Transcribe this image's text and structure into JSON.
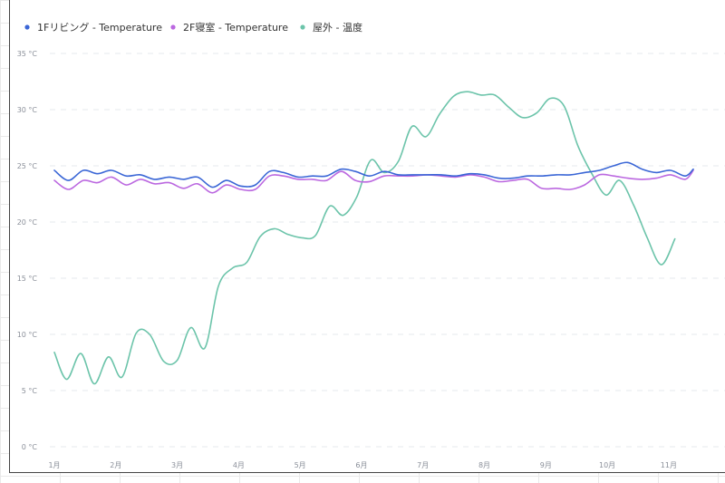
{
  "chart_data": {
    "type": "line",
    "title": "",
    "xlabel": "",
    "ylabel": "",
    "ylim": [
      0,
      35
    ],
    "yticks": [
      {
        "value": 0,
        "label": "0 °C"
      },
      {
        "value": 5,
        "label": "5 °C"
      },
      {
        "value": 10,
        "label": "10 °C"
      },
      {
        "value": 15,
        "label": "15 °C"
      },
      {
        "value": 20,
        "label": "20 °C"
      },
      {
        "value": 25,
        "label": "25 °C"
      },
      {
        "value": 30,
        "label": "30 °C"
      },
      {
        "value": 35,
        "label": "35 °C"
      }
    ],
    "xlim": [
      1,
      11.4
    ],
    "xticks": [
      {
        "value": 1,
        "label": "1月"
      },
      {
        "value": 2,
        "label": "2月"
      },
      {
        "value": 3,
        "label": "3月"
      },
      {
        "value": 4,
        "label": "4月"
      },
      {
        "value": 5,
        "label": "5月"
      },
      {
        "value": 6,
        "label": "6月"
      },
      {
        "value": 7,
        "label": "7月"
      },
      {
        "value": 8,
        "label": "8月"
      },
      {
        "value": 9,
        "label": "9月"
      },
      {
        "value": 10,
        "label": "10月"
      },
      {
        "value": 11,
        "label": "11月"
      }
    ],
    "grid": "horizontal-dashed",
    "legend_position": "top-left",
    "series": [
      {
        "name": "1Fリビング - Temperature",
        "color": "#3a66d6",
        "points": [
          [
            1.0,
            24.6
          ],
          [
            1.23,
            23.7
          ],
          [
            1.47,
            24.6
          ],
          [
            1.7,
            24.3
          ],
          [
            1.93,
            24.6
          ],
          [
            2.17,
            24.1
          ],
          [
            2.4,
            24.2
          ],
          [
            2.63,
            23.8
          ],
          [
            2.87,
            24.0
          ],
          [
            3.1,
            23.8
          ],
          [
            3.33,
            24.0
          ],
          [
            3.57,
            23.1
          ],
          [
            3.8,
            23.7
          ],
          [
            4.03,
            23.2
          ],
          [
            4.27,
            23.3
          ],
          [
            4.5,
            24.5
          ],
          [
            4.73,
            24.4
          ],
          [
            4.97,
            24.0
          ],
          [
            5.2,
            24.1
          ],
          [
            5.43,
            24.1
          ],
          [
            5.67,
            24.7
          ],
          [
            5.9,
            24.5
          ],
          [
            6.13,
            24.1
          ],
          [
            6.37,
            24.5
          ],
          [
            6.6,
            24.2
          ],
          [
            6.83,
            24.2
          ],
          [
            7.07,
            24.2
          ],
          [
            7.3,
            24.2
          ],
          [
            7.53,
            24.1
          ],
          [
            7.77,
            24.3
          ],
          [
            8.0,
            24.2
          ],
          [
            8.23,
            23.9
          ],
          [
            8.47,
            23.9
          ],
          [
            8.7,
            24.1
          ],
          [
            8.93,
            24.1
          ],
          [
            9.17,
            24.2
          ],
          [
            9.4,
            24.2
          ],
          [
            9.63,
            24.4
          ],
          [
            9.87,
            24.6
          ],
          [
            10.1,
            25.0
          ],
          [
            10.33,
            25.3
          ],
          [
            10.57,
            24.7
          ],
          [
            10.8,
            24.4
          ],
          [
            11.03,
            24.6
          ],
          [
            11.27,
            24.1
          ],
          [
            11.4,
            24.7
          ]
        ]
      },
      {
        "name": "2F寝室 - Temperature",
        "color": "#bb68e0",
        "points": [
          [
            1.0,
            23.7
          ],
          [
            1.23,
            22.9
          ],
          [
            1.47,
            23.7
          ],
          [
            1.7,
            23.5
          ],
          [
            1.93,
            24.0
          ],
          [
            2.17,
            23.3
          ],
          [
            2.4,
            23.8
          ],
          [
            2.63,
            23.4
          ],
          [
            2.87,
            23.5
          ],
          [
            3.1,
            23.0
          ],
          [
            3.33,
            23.4
          ],
          [
            3.57,
            22.6
          ],
          [
            3.8,
            23.3
          ],
          [
            4.03,
            22.9
          ],
          [
            4.27,
            22.9
          ],
          [
            4.5,
            24.1
          ],
          [
            4.73,
            24.1
          ],
          [
            4.97,
            23.8
          ],
          [
            5.2,
            23.8
          ],
          [
            5.43,
            23.7
          ],
          [
            5.67,
            24.5
          ],
          [
            5.9,
            23.7
          ],
          [
            6.13,
            23.6
          ],
          [
            6.37,
            24.1
          ],
          [
            6.6,
            24.1
          ],
          [
            6.83,
            24.1
          ],
          [
            7.07,
            24.2
          ],
          [
            7.3,
            24.1
          ],
          [
            7.53,
            24.0
          ],
          [
            7.77,
            24.2
          ],
          [
            8.0,
            24.0
          ],
          [
            8.23,
            23.6
          ],
          [
            8.47,
            23.7
          ],
          [
            8.7,
            23.8
          ],
          [
            8.93,
            23.0
          ],
          [
            9.17,
            23.0
          ],
          [
            9.4,
            22.9
          ],
          [
            9.63,
            23.3
          ],
          [
            9.87,
            24.2
          ],
          [
            10.1,
            24.1
          ],
          [
            10.33,
            23.9
          ],
          [
            10.57,
            23.8
          ],
          [
            10.8,
            23.9
          ],
          [
            11.03,
            24.2
          ],
          [
            11.27,
            23.8
          ],
          [
            11.4,
            24.6
          ]
        ]
      },
      {
        "name": "屋外 - 温度",
        "color": "#6cc4aa",
        "points": [
          [
            1.0,
            8.4
          ],
          [
            1.2,
            6.0
          ],
          [
            1.43,
            8.3
          ],
          [
            1.65,
            5.6
          ],
          [
            1.88,
            8.0
          ],
          [
            2.1,
            6.2
          ],
          [
            2.33,
            10.1
          ],
          [
            2.55,
            10.0
          ],
          [
            2.78,
            7.6
          ],
          [
            3.0,
            7.7
          ],
          [
            3.22,
            10.6
          ],
          [
            3.45,
            8.8
          ],
          [
            3.67,
            14.3
          ],
          [
            3.9,
            15.9
          ],
          [
            4.13,
            16.4
          ],
          [
            4.35,
            18.7
          ],
          [
            4.58,
            19.4
          ],
          [
            4.8,
            18.9
          ],
          [
            5.03,
            18.6
          ],
          [
            5.25,
            18.8
          ],
          [
            5.48,
            21.4
          ],
          [
            5.7,
            20.6
          ],
          [
            5.92,
            22.2
          ],
          [
            6.15,
            25.5
          ],
          [
            6.37,
            24.4
          ],
          [
            6.6,
            25.4
          ],
          [
            6.82,
            28.5
          ],
          [
            7.05,
            27.6
          ],
          [
            7.27,
            29.6
          ],
          [
            7.5,
            31.2
          ],
          [
            7.72,
            31.6
          ],
          [
            7.95,
            31.3
          ],
          [
            8.17,
            31.3
          ],
          [
            8.4,
            30.2
          ],
          [
            8.62,
            29.3
          ],
          [
            8.85,
            29.7
          ],
          [
            9.07,
            31.0
          ],
          [
            9.3,
            30.3
          ],
          [
            9.52,
            26.8
          ],
          [
            9.75,
            24.3
          ],
          [
            9.98,
            22.4
          ],
          [
            10.2,
            23.7
          ],
          [
            10.43,
            21.5
          ],
          [
            10.65,
            18.6
          ],
          [
            10.88,
            16.2
          ],
          [
            11.1,
            18.5
          ]
        ]
      }
    ]
  }
}
